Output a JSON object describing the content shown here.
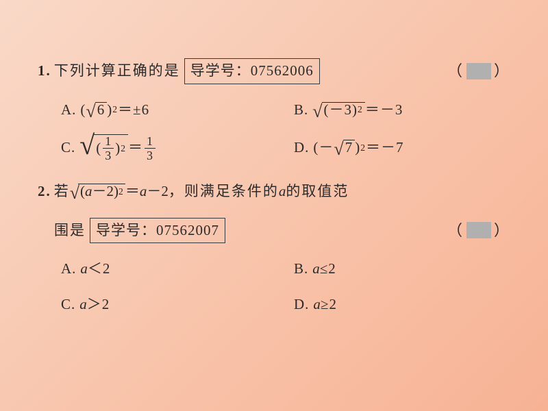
{
  "q1": {
    "number": "1.",
    "stem_pre": "下列计算正确的是",
    "box_label": "导学号：",
    "box_num": "07562006",
    "paren_l": "（",
    "paren_r": "）",
    "A": {
      "lbl": "A.",
      "l": "(",
      "v": "6",
      "r": ")",
      "exp": "2",
      "eq": "＝±",
      "res": "6"
    },
    "B": {
      "lbl": "B.",
      "l": "(－",
      "v": "3",
      "r": ")",
      "exp": "2",
      "eq": "＝－",
      "res": "3"
    },
    "C": {
      "lbl": "C.",
      "l": "(",
      "num": "1",
      "den": "3",
      "r": ")",
      "exp": "2",
      "eq": "＝",
      "rnum": "1",
      "rden": "3"
    },
    "D": {
      "lbl": "D.",
      "l": "(－",
      "v": "7",
      "r": ")",
      "exp": "2",
      "eq": "＝－",
      "res": "7"
    }
  },
  "q2": {
    "number": "2.",
    "stem_pre": "若",
    "sqrt_l": "(",
    "var": "a",
    "minus": "－",
    "two": "2",
    "sqrt_r": ")",
    "exp": "2",
    "eq": "＝",
    "rhs_a": "a",
    "rhs_minus": "－",
    "rhs_2": "2",
    "comma": "，",
    "stem_post": "则满足条件的 ",
    "stem_var": "a",
    "stem_post2": " 的取值范",
    "stem_line2": "围是",
    "box_label": "导学号：",
    "box_num": "07562007",
    "paren_l": "（",
    "paren_r": "）",
    "A": {
      "lbl": "A.",
      "var": "a",
      "op": "＜",
      "v": "2"
    },
    "B": {
      "lbl": "B.",
      "var": "a",
      "op": "≤",
      "v": "2"
    },
    "C": {
      "lbl": "C.",
      "var": "a",
      "op": "＞",
      "v": "2"
    },
    "D": {
      "lbl": "D.",
      "var": "a",
      "op": "≥",
      "v": "2"
    }
  }
}
